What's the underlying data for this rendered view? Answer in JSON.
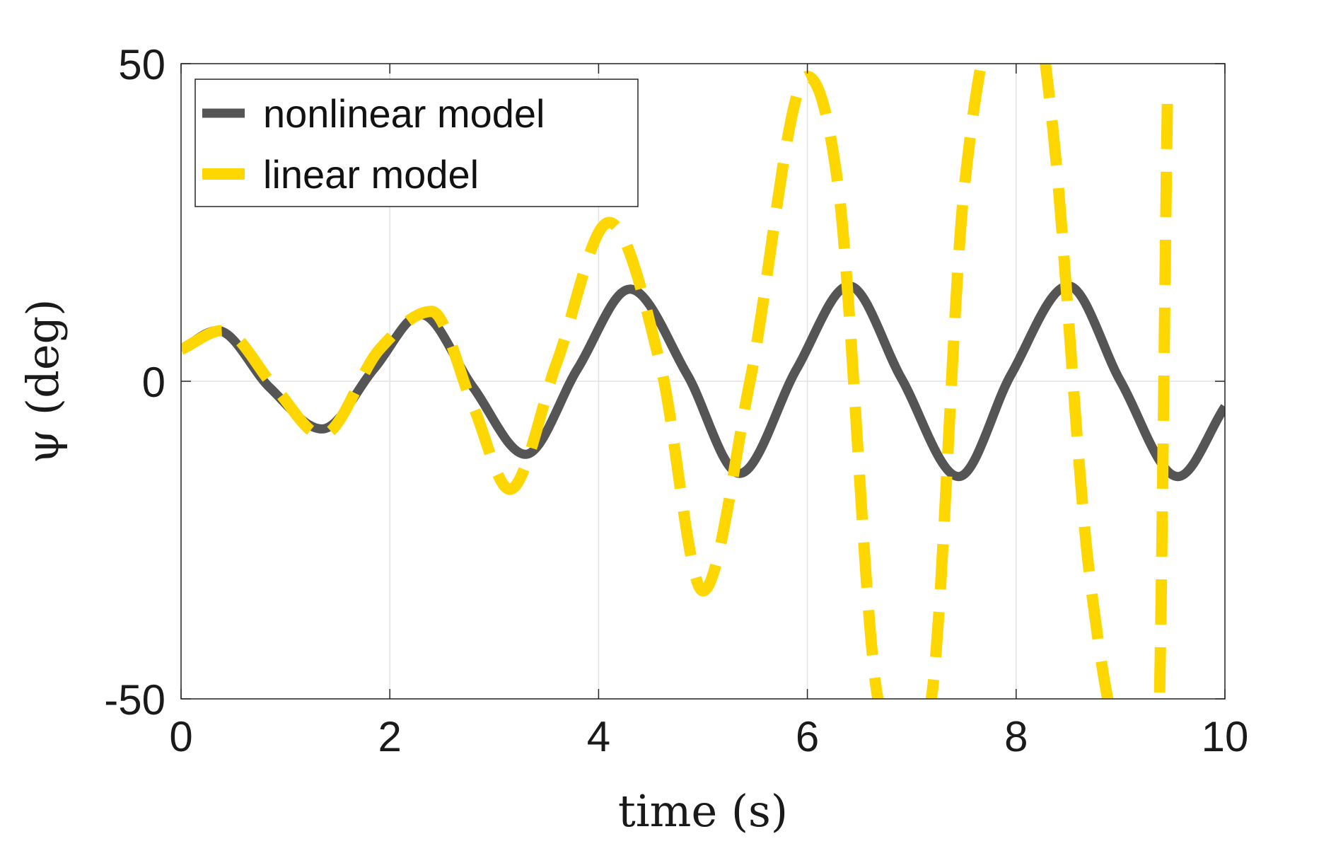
{
  "chart_data": {
    "type": "line",
    "xlabel": "time (s)",
    "ylabel": "ψ (deg)",
    "xlim": [
      0,
      10
    ],
    "ylim": [
      -50,
      50
    ],
    "xticks": [
      0,
      2,
      4,
      6,
      8,
      10
    ],
    "yticks": [
      -50,
      0,
      50
    ],
    "xtick_labels": [
      "0",
      "2",
      "4",
      "6",
      "8",
      "10"
    ],
    "ytick_labels": [
      "-50",
      "0",
      "50"
    ],
    "grid": true,
    "legend_position": "top-left",
    "series": [
      {
        "name": "nonlinear model",
        "color": "#555555",
        "style": "solid",
        "x": [
          0,
          0.35,
          0.85,
          1.35,
          1.85,
          2.3,
          2.8,
          3.3,
          3.8,
          4.3,
          4.85,
          5.35,
          5.9,
          6.4,
          6.9,
          7.45,
          7.95,
          8.5,
          9.0,
          9.55,
          10.0
        ],
        "y": [
          5,
          8,
          -1,
          -7.5,
          2,
          10.5,
          -1,
          -11.5,
          2,
          14.5,
          1,
          -14.5,
          2,
          15,
          0.5,
          -15,
          1,
          15,
          0,
          -15,
          -4
        ]
      },
      {
        "name": "linear model",
        "color": "#ffd700",
        "style": "dashed",
        "x": [
          0,
          0.4,
          0.9,
          1.35,
          1.9,
          2.4,
          2.8,
          3.15,
          3.6,
          4.1,
          4.6,
          5.0,
          5.45,
          6.0,
          6.3,
          6.72,
          7.15,
          7.5,
          7.9,
          8.15,
          8.35,
          8.7,
          9.1,
          9.35,
          9.45
        ],
        "y": [
          5,
          8,
          -1,
          -8.5,
          5,
          11,
          -4,
          -17,
          3,
          25,
          2,
          -33,
          0,
          48,
          30,
          -52,
          -52,
          30,
          60,
          60,
          40,
          -30,
          -60,
          -60,
          45
        ]
      }
    ]
  }
}
